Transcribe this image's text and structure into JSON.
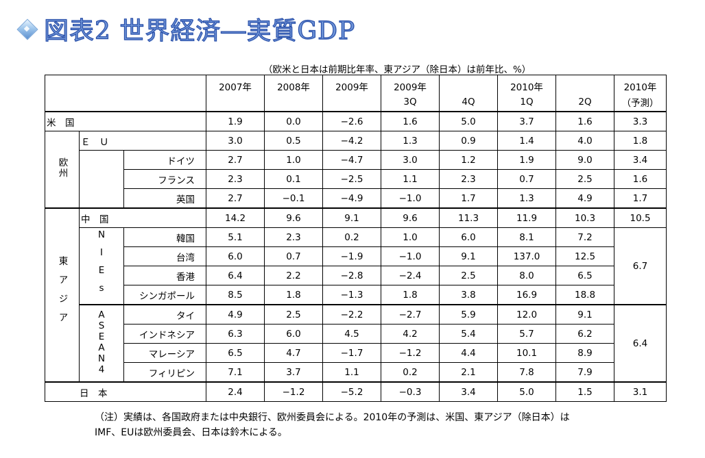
{
  "title": "図表2 世界経済―実質GDP",
  "unit_note": "（欧米と日本は前期比年率、東アジア（除日本）は前年比、%）",
  "header": {
    "row1": [
      "2007年",
      "2008年",
      "2009年",
      "2009年",
      "",
      "2010年",
      "",
      "2010年"
    ],
    "row2": [
      "",
      "",
      "",
      "3Q",
      "4Q",
      "1Q",
      "2Q",
      "（予測）"
    ]
  },
  "labels": {
    "us": "米　国",
    "eu": "Ｅ　Ｕ",
    "europe": "欧州",
    "east_asia": "東アジア",
    "china": "中　国",
    "nies": "NIEs",
    "asean4": "ASEAN4",
    "japan": "日　本"
  },
  "rows": {
    "us": [
      "1.9",
      "0.0",
      "−2.6",
      "1.6",
      "5.0",
      "3.7",
      "1.6",
      "3.3"
    ],
    "eu": [
      "3.0",
      "0.5",
      "−4.2",
      "1.3",
      "0.9",
      "1.4",
      "4.0",
      "1.8"
    ],
    "germany": {
      "name": "ドイツ",
      "values": [
        "2.7",
        "1.0",
        "−4.7",
        "3.0",
        "1.2",
        "1.9",
        "9.0",
        "3.4"
      ]
    },
    "france": {
      "name": "フランス",
      "values": [
        "2.3",
        "0.1",
        "−2.5",
        "1.1",
        "2.3",
        "0.7",
        "2.5",
        "1.6"
      ]
    },
    "uk": {
      "name": "英国",
      "values": [
        "2.7",
        "−0.1",
        "−4.9",
        "−1.0",
        "1.7",
        "1.3",
        "4.9",
        "1.7"
      ]
    },
    "china": [
      "14.2",
      "9.6",
      "9.1",
      "9.6",
      "11.3",
      "11.9",
      "10.3",
      "10.5"
    ],
    "korea": {
      "name": "韓国",
      "values": [
        "5.1",
        "2.3",
        "0.2",
        "1.0",
        "6.0",
        "8.1",
        "7.2"
      ]
    },
    "taiwan": {
      "name": "台湾",
      "values": [
        "6.0",
        "0.7",
        "−1.9",
        "−1.0",
        "9.1",
        "137.0",
        "12.5"
      ]
    },
    "hongkong": {
      "name": "香港",
      "values": [
        "6.4",
        "2.2",
        "−2.8",
        "−2.4",
        "2.5",
        "8.0",
        "6.5"
      ]
    },
    "singapore": {
      "name": "シンガポール",
      "values": [
        "8.5",
        "1.8",
        "−1.3",
        "1.8",
        "3.8",
        "16.9",
        "18.8"
      ]
    },
    "nies_forecast": "6.7",
    "thailand": {
      "name": "タイ",
      "values": [
        "4.9",
        "2.5",
        "−2.2",
        "−2.7",
        "5.9",
        "12.0",
        "9.1"
      ]
    },
    "indonesia": {
      "name": "インドネシア",
      "values": [
        "6.3",
        "6.0",
        "4.5",
        "4.2",
        "5.4",
        "5.7",
        "6.2"
      ]
    },
    "malaysia": {
      "name": "マレーシア",
      "values": [
        "6.5",
        "4.7",
        "−1.7",
        "−1.2",
        "4.4",
        "10.1",
        "8.9"
      ]
    },
    "philippines": {
      "name": "フィリピン",
      "values": [
        "7.1",
        "3.7",
        "1.1",
        "0.2",
        "2.1",
        "7.8",
        "7.9"
      ]
    },
    "asean4_forecast": "6.4",
    "japan": [
      "2.4",
      "−1.2",
      "−5.2",
      "−0.3",
      "3.4",
      "5.0",
      "1.5",
      "3.1"
    ]
  },
  "footnote": {
    "line1": "（注）実績は、各国政府または中央銀行、欧州委員会による。2010年の予測は、米国、東アジア（除日本）は",
    "line2": "IMF、EUは欧州委員会、日本は鈴木による。"
  }
}
